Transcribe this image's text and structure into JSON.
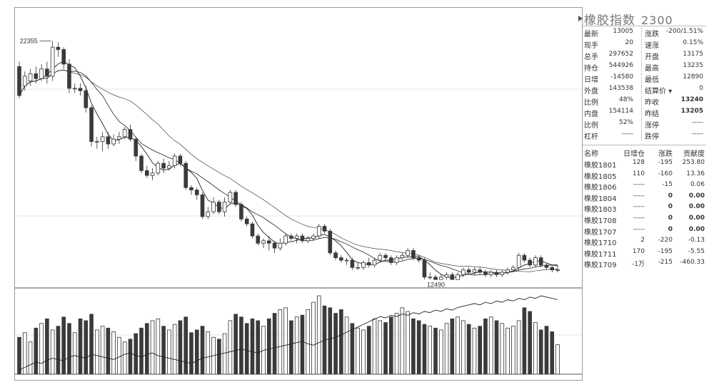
{
  "colors": {
    "up_fill": "#ffffff",
    "up_stroke": "#333333",
    "down_fill": "#3a3a3a",
    "ma_line": "#222222",
    "grid": "#cccccc"
  },
  "panel": {
    "title": "橡胶指数",
    "code": "2300",
    "quote_rows": [
      {
        "k1": "最新",
        "v1": "13005",
        "k2": "涨跌",
        "v2": "-200/1.51%",
        "b2": false
      },
      {
        "k1": "现手",
        "v1": "20",
        "k2": "速涨",
        "v2": "0.15%",
        "b2": false
      },
      {
        "k1": "总手",
        "v1": "297652",
        "k2": "开盘",
        "v2": "13175",
        "b2": false
      },
      {
        "k1": "持仓",
        "v1": "544926",
        "k2": "最高",
        "v2": "13235",
        "b2": false
      },
      {
        "k1": "日增",
        "v1": "-14580",
        "k2": "最低",
        "v2": "12890",
        "b2": false
      },
      {
        "k1": "外盘",
        "v1": "143538",
        "k2": "结算价 ▾",
        "v2": "0",
        "b2": false
      },
      {
        "k1": "比例",
        "v1": "48%",
        "k2": "昨收",
        "v2": "13240",
        "b2": true
      },
      {
        "k1": "内盘",
        "v1": "154114",
        "k2": "昨结",
        "v2": "13205",
        "b2": true
      },
      {
        "k1": "比例",
        "v1": "52%",
        "k2": "涨停",
        "v2": "-----",
        "b2": false
      },
      {
        "k1": "杠杆",
        "v1": "-----",
        "k2": "跌停",
        "v2": "-----",
        "b2": false
      }
    ],
    "contract_headers": {
      "name": "名称",
      "oi": "日增仓",
      "change": "涨跌",
      "contrib": "贡献度"
    },
    "contracts": [
      {
        "name": "橡胶1801",
        "oi": "128",
        "change": "-195",
        "contrib": "253.80",
        "bold": false
      },
      {
        "name": "橡胶1805",
        "oi": "110",
        "change": "-160",
        "contrib": "13.36",
        "bold": false
      },
      {
        "name": "橡胶1806",
        "oi": "-----",
        "change": "-15",
        "contrib": "0.06",
        "bold": false
      },
      {
        "name": "橡胶1804",
        "oi": "-----",
        "change": "0",
        "contrib": "0.00",
        "bold": true
      },
      {
        "name": "橡胶1803",
        "oi": "-----",
        "change": "0",
        "contrib": "0.00",
        "bold": true
      },
      {
        "name": "橡胶1708",
        "oi": "-----",
        "change": "0",
        "contrib": "0.00",
        "bold": true
      },
      {
        "name": "橡胶1707",
        "oi": "-----",
        "change": "0",
        "contrib": "0.00",
        "bold": true
      },
      {
        "name": "橡胶1710",
        "oi": "2",
        "change": "-220",
        "contrib": "-0.13",
        "bold": false
      },
      {
        "name": "橡胶1711",
        "oi": "170",
        "change": "-195",
        "contrib": "-5.55",
        "bold": false
      },
      {
        "name": "橡胶1709",
        "oi": "-1万",
        "change": "-215",
        "contrib": "-460.33",
        "bold": false
      }
    ]
  },
  "chart_data": {
    "type": "candlestick",
    "ylim": [
      12300,
      22900
    ],
    "high_label": "22355",
    "low_label": "12490",
    "candles": [
      [
        21300,
        20100,
        21500,
        20000
      ],
      [
        20500,
        20900,
        21100,
        20300
      ],
      [
        20700,
        21000,
        21200,
        20500
      ],
      [
        21000,
        20800,
        21300,
        20600
      ],
      [
        20800,
        21200,
        21400,
        20700
      ],
      [
        21200,
        20900,
        21500,
        20600
      ],
      [
        20900,
        22100,
        22355,
        20700
      ],
      [
        22100,
        22000,
        22300,
        21700
      ],
      [
        22000,
        21400,
        22100,
        21200
      ],
      [
        21400,
        20400,
        21600,
        20200
      ],
      [
        20400,
        20400,
        20600,
        20200
      ],
      [
        20400,
        20300,
        20600,
        20100
      ],
      [
        20300,
        19600,
        20500,
        19400
      ],
      [
        19600,
        18200,
        19700,
        18000
      ],
      [
        18200,
        18200,
        18400,
        17900
      ],
      [
        18200,
        18400,
        18600,
        17800
      ],
      [
        18400,
        18100,
        18600,
        17900
      ],
      [
        18100,
        18300,
        18500,
        18000
      ],
      [
        18300,
        18400,
        18600,
        18100
      ],
      [
        18400,
        18700,
        18800,
        18300
      ],
      [
        18700,
        18300,
        18900,
        18200
      ],
      [
        18300,
        17600,
        18400,
        17400
      ],
      [
        17600,
        17000,
        17700,
        16900
      ],
      [
        17000,
        16800,
        17200,
        16700
      ],
      [
        16800,
        16900,
        17100,
        16600
      ],
      [
        16900,
        17300,
        17400,
        16800
      ],
      [
        17300,
        17100,
        17500,
        16900
      ],
      [
        17100,
        17200,
        17400,
        17000
      ],
      [
        17200,
        17600,
        17700,
        17100
      ],
      [
        17600,
        17300,
        17700,
        17200
      ],
      [
        17300,
        16300,
        17400,
        16200
      ],
      [
        16300,
        16200,
        16400,
        16000
      ],
      [
        16200,
        16000,
        16300,
        15800
      ],
      [
        16000,
        15100,
        16100,
        15000
      ],
      [
        15100,
        15300,
        15500,
        15000
      ],
      [
        15300,
        15700,
        15900,
        15200
      ],
      [
        15700,
        15300,
        15800,
        15200
      ],
      [
        15300,
        15700,
        15900,
        15100
      ],
      [
        15700,
        16100,
        16200,
        15600
      ],
      [
        16100,
        15600,
        16200,
        15500
      ],
      [
        15600,
        15000,
        15700,
        14900
      ],
      [
        15000,
        14800,
        15100,
        14700
      ],
      [
        14800,
        14300,
        14900,
        14200
      ],
      [
        14300,
        14000,
        14400,
        13900
      ],
      [
        14000,
        14100,
        14200,
        13800
      ],
      [
        14100,
        14000,
        14300,
        13700
      ],
      [
        14000,
        13800,
        14100,
        13600
      ],
      [
        13800,
        14000,
        14200,
        13700
      ],
      [
        14000,
        14300,
        14400,
        13900
      ],
      [
        14300,
        14200,
        14400,
        14100
      ],
      [
        14200,
        14300,
        14400,
        14000
      ],
      [
        14300,
        14100,
        14400,
        14000
      ],
      [
        14100,
        14200,
        14300,
        14000
      ],
      [
        14200,
        14300,
        14400,
        14100
      ],
      [
        14300,
        14700,
        14800,
        14200
      ],
      [
        14700,
        14500,
        14800,
        14400
      ],
      [
        14500,
        13600,
        14600,
        13500
      ],
      [
        13600,
        13400,
        13700,
        13300
      ],
      [
        13400,
        13300,
        13500,
        13200
      ],
      [
        13300,
        13300,
        13400,
        13100
      ],
      [
        13300,
        13000,
        13400,
        12900
      ],
      [
        13000,
        13000,
        13200,
        12900
      ],
      [
        13000,
        13200,
        13300,
        12900
      ],
      [
        13200,
        13100,
        13400,
        13000
      ],
      [
        13100,
        13300,
        13400,
        13000
      ],
      [
        13300,
        13500,
        13600,
        13200
      ],
      [
        13500,
        13400,
        13600,
        13300
      ],
      [
        13400,
        13200,
        13500,
        13100
      ],
      [
        13200,
        13400,
        13500,
        13100
      ],
      [
        13400,
        13500,
        13600,
        13300
      ],
      [
        13500,
        13700,
        13800,
        13400
      ],
      [
        13700,
        13400,
        13800,
        13300
      ],
      [
        13400,
        13300,
        13500,
        13200
      ],
      [
        13300,
        12600,
        13400,
        12500
      ],
      [
        12600,
        12600,
        12800,
        12500
      ],
      [
        12600,
        12500,
        12700,
        12490
      ],
      [
        12500,
        12600,
        12700,
        12490
      ],
      [
        12600,
        12700,
        12800,
        12500
      ],
      [
        12700,
        12500,
        12800,
        12490
      ],
      [
        12500,
        12700,
        12800,
        12490
      ],
      [
        12700,
        12900,
        13000,
        12600
      ],
      [
        12900,
        12800,
        13000,
        12700
      ],
      [
        12800,
        12900,
        13000,
        12700
      ],
      [
        12900,
        12800,
        13000,
        12700
      ],
      [
        12800,
        12700,
        12900,
        12600
      ],
      [
        12700,
        12800,
        12900,
        12600
      ],
      [
        12800,
        12700,
        12900,
        12600
      ],
      [
        12700,
        12800,
        12900,
        12600
      ],
      [
        12800,
        12900,
        13000,
        12700
      ],
      [
        12900,
        13000,
        13100,
        12800
      ],
      [
        13000,
        13500,
        13600,
        12900
      ],
      [
        13500,
        13300,
        13600,
        13200
      ],
      [
        13300,
        13100,
        13400,
        13000
      ],
      [
        13100,
        13400,
        13500,
        13000
      ],
      [
        13400,
        13100,
        13500,
        13000
      ],
      [
        13100,
        13000,
        13200,
        12900
      ],
      [
        13000,
        12900,
        13100,
        12800
      ],
      [
        12900,
        12900,
        13100,
        12800
      ]
    ],
    "volumes": [
      40,
      45,
      35,
      50,
      55,
      60,
      48,
      52,
      62,
      55,
      45,
      60,
      58,
      65,
      48,
      52,
      50,
      46,
      40,
      35,
      38,
      44,
      50,
      55,
      58,
      60,
      52,
      48,
      54,
      58,
      62,
      45,
      48,
      52,
      46,
      40,
      38,
      44,
      58,
      65,
      62,
      55,
      60,
      58,
      52,
      60,
      66,
      70,
      72,
      58,
      62,
      64,
      70,
      78,
      85,
      74,
      72,
      66,
      70,
      62,
      55,
      50,
      48,
      52,
      60,
      58,
      56,
      62,
      66,
      72,
      68,
      60,
      58,
      54,
      52,
      50,
      48,
      55,
      60,
      62,
      58,
      54,
      50,
      52,
      60,
      62,
      58,
      55,
      50,
      52,
      58,
      72,
      68,
      56,
      48,
      52,
      46,
      32
    ],
    "open_interest": [
      10,
      14,
      18,
      22,
      20,
      25,
      28,
      26,
      24,
      30,
      32,
      30,
      28,
      34,
      32,
      30,
      28,
      26,
      30,
      34,
      36,
      32,
      30,
      34,
      36,
      32,
      30,
      28,
      26,
      24,
      22,
      20,
      24,
      28,
      30,
      32,
      34,
      36,
      38,
      40,
      42,
      40,
      38,
      36,
      40,
      42,
      44,
      46,
      48,
      50,
      52,
      54,
      50,
      48,
      52,
      56,
      58,
      60,
      64,
      68,
      72,
      76,
      80,
      84,
      88,
      92,
      90,
      94,
      92,
      96,
      94,
      98,
      96,
      100,
      98,
      102,
      100,
      104,
      102,
      106,
      108,
      110,
      112,
      110,
      114,
      112,
      116,
      114,
      118,
      116,
      120,
      118,
      122,
      120,
      124,
      122,
      120,
      118
    ]
  }
}
